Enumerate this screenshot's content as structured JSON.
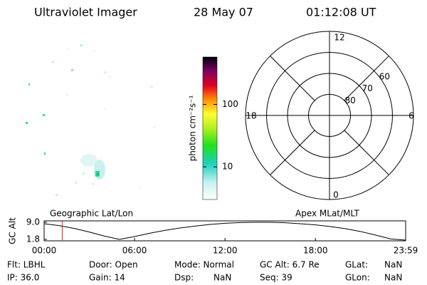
{
  "header": {
    "instrument": "Ultraviolet Imager",
    "date": "28 May 07",
    "time": "01:12:08 UT"
  },
  "colorbar": {
    "label": "photon cm⁻²s⁻¹",
    "scale": "log",
    "lim": [
      3,
      575
    ],
    "ticks": [
      10,
      100
    ]
  },
  "polar": {
    "mlt_labels": [
      "12",
      "18",
      "6",
      "0"
    ],
    "lat_lim": [
      50,
      90
    ],
    "lat_rings": [
      60,
      70,
      80
    ]
  },
  "timeline": {
    "type": "line",
    "ylabel": "GC Alt",
    "left_label": "Geographic Lat/Lon",
    "right_label": "Apex MLat/MLT",
    "xlim": [
      0,
      23.983
    ],
    "xticks": [
      {
        "value": 0,
        "label": "00:00"
      },
      {
        "value": 6,
        "label": "06:00"
      },
      {
        "value": 12,
        "label": "12:00"
      },
      {
        "value": 18,
        "label": "18:00"
      },
      {
        "value": 23.983,
        "label": "23:59"
      }
    ],
    "ylim": [
      1.2,
      9.6
    ],
    "yticks": [
      {
        "value": 9,
        "label": "9.0"
      },
      1.8
    ],
    "x": [
      0,
      1,
      2,
      3,
      4,
      5,
      6,
      7,
      8,
      9,
      10,
      11,
      12,
      13,
      14,
      15,
      16,
      17,
      18,
      19,
      20,
      21,
      22,
      23,
      23.983
    ],
    "series": [
      {
        "name": "GC Alt",
        "color": "#000000",
        "values": [
          8.4,
          7.6,
          6.4,
          4.9,
          3.2,
          1.8,
          3.0,
          4.4,
          5.6,
          6.6,
          7.4,
          8.1,
          8.6,
          8.9,
          9.0,
          9.0,
          8.8,
          8.4,
          7.9,
          7.2,
          6.3,
          5.1,
          3.6,
          2.0,
          1.5
        ]
      }
    ],
    "marker_x": 1.2,
    "marker_color": "#e02020"
  },
  "footer": {
    "rows": [
      [
        "Flt: LBHL",
        "Door: Open",
        "Mode: Normal",
        "GC Alt: 6.7 Re",
        "GLat:",
        "NaN"
      ],
      [
        "IP: 36.0",
        "Gain: 14",
        "Dsp:",
        "NaN",
        "Seq: 39",
        "GLon:",
        "NaN"
      ]
    ]
  }
}
